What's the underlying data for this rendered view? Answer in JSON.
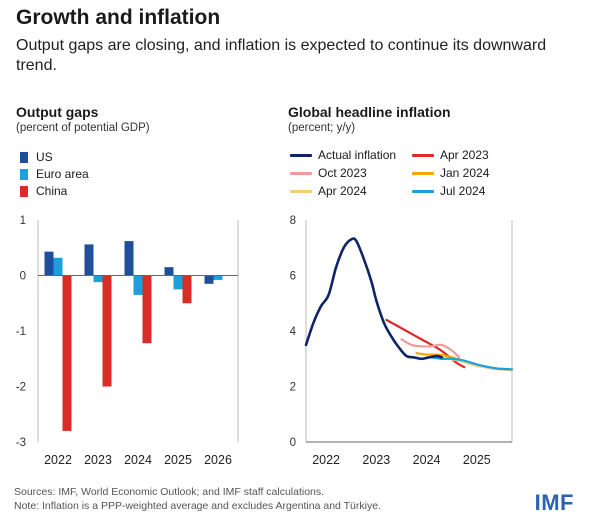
{
  "title": "Growth and inflation",
  "subtitle": "Output gaps are closing, and inflation is expected to continue its downward trend.",
  "colors": {
    "us": "#1f4e9a",
    "euro_area": "#1ba0dc",
    "china": "#dc2a26",
    "actual": "#0e2466",
    "apr2023": "#dc2a26",
    "oct2023": "#f09b96",
    "jan2024": "#f2a800",
    "apr2024": "#f4cc7a",
    "jul2024": "#1ba0dc"
  },
  "footer": {
    "sources": "Sources: IMF, World Economic Outlook; and IMF staff calculations.",
    "note": "Note: Inflation is a PPP-weighted average and excludes Argentina and Türkiye."
  },
  "logo": "IMF",
  "chart_data": [
    {
      "type": "bar",
      "title": "Output gaps",
      "subtitle": "(percent of potential GDP)",
      "categories": [
        "2022",
        "2023",
        "2024",
        "2025",
        "2026"
      ],
      "series": [
        {
          "name": "US",
          "values": [
            0.43,
            0.56,
            0.62,
            0.15,
            -0.15
          ]
        },
        {
          "name": "Euro area",
          "values": [
            0.32,
            -0.12,
            -0.35,
            -0.25,
            -0.08
          ]
        },
        {
          "name": "China",
          "values": [
            -2.8,
            -2.0,
            -1.22,
            -0.5,
            0
          ]
        }
      ],
      "ylim": [
        -3,
        1
      ],
      "yticks": [
        "1",
        "0",
        "-1",
        "-2",
        "-3"
      ],
      "xlabel": "",
      "ylabel": ""
    },
    {
      "type": "line",
      "title": "Global headline inflation",
      "subtitle": "(percent; y/y)",
      "xlim": [
        2021.6,
        2025.7
      ],
      "ylim": [
        0,
        8
      ],
      "yticks": [
        "8",
        "6",
        "4",
        "2",
        "0"
      ],
      "xticks": [
        {
          "x": 2022,
          "label": "2022"
        },
        {
          "x": 2023,
          "label": "2023"
        },
        {
          "x": 2024,
          "label": "2024"
        },
        {
          "x": 2025,
          "label": "2025"
        }
      ],
      "series": [
        {
          "name": "Actual inflation",
          "key": "actual",
          "x": [
            2021.6,
            2021.75,
            2021.9,
            2022.05,
            2022.2,
            2022.35,
            2022.5,
            2022.6,
            2022.75,
            2022.9,
            2023.0,
            2023.15,
            2023.3,
            2023.45,
            2023.6,
            2023.75,
            2023.9,
            2024.05,
            2024.2,
            2024.3
          ],
          "y": [
            3.5,
            4.3,
            4.9,
            5.3,
            6.3,
            7.0,
            7.3,
            7.25,
            6.6,
            5.8,
            5.1,
            4.3,
            3.8,
            3.4,
            3.1,
            3.05,
            3.0,
            3.05,
            3.1,
            3.05
          ]
        },
        {
          "name": "Apr 2023",
          "key": "apr2023",
          "x": [
            2023.2,
            2023.4,
            2023.6,
            2023.8,
            2024.0,
            2024.2,
            2024.4,
            2024.6,
            2024.75
          ],
          "y": [
            4.4,
            4.2,
            4.0,
            3.8,
            3.6,
            3.4,
            3.15,
            2.85,
            2.7
          ]
        },
        {
          "name": "Oct 2023",
          "key": "oct2023",
          "x": [
            2023.5,
            2023.7,
            2023.9,
            2024.1,
            2024.3,
            2024.5,
            2024.65
          ],
          "y": [
            3.7,
            3.5,
            3.45,
            3.45,
            3.5,
            3.3,
            3.05
          ]
        },
        {
          "name": "Jan 2024",
          "key": "jan2024",
          "x": [
            2023.8,
            2024.0,
            2024.2,
            2024.4,
            2024.6,
            2024.8,
            2025.0,
            2025.2,
            2025.4,
            2025.7
          ],
          "y": [
            3.2,
            3.15,
            3.15,
            3.1,
            3.0,
            2.85,
            2.75,
            2.7,
            2.65,
            2.6
          ]
        },
        {
          "name": "Apr 2024",
          "key": "apr2024",
          "x": [
            2024.0,
            2024.2,
            2024.4,
            2024.6,
            2024.8,
            2025.0,
            2025.3,
            2025.7
          ],
          "y": [
            3.05,
            3.05,
            3.0,
            2.95,
            2.85,
            2.75,
            2.65,
            2.58
          ]
        },
        {
          "name": "Jul 2024",
          "key": "jul2024",
          "x": [
            2024.1,
            2024.3,
            2024.5,
            2024.7,
            2024.9,
            2025.1,
            2025.4,
            2025.7
          ],
          "y": [
            3.05,
            3.0,
            3.0,
            2.95,
            2.85,
            2.75,
            2.65,
            2.62
          ]
        }
      ]
    }
  ],
  "legends": {
    "bar": [
      "US",
      "Euro area",
      "China"
    ],
    "line": [
      "Actual inflation",
      "Apr 2023",
      "Oct 2023",
      "Jan 2024",
      "Apr 2024",
      "Jul 2024"
    ]
  }
}
